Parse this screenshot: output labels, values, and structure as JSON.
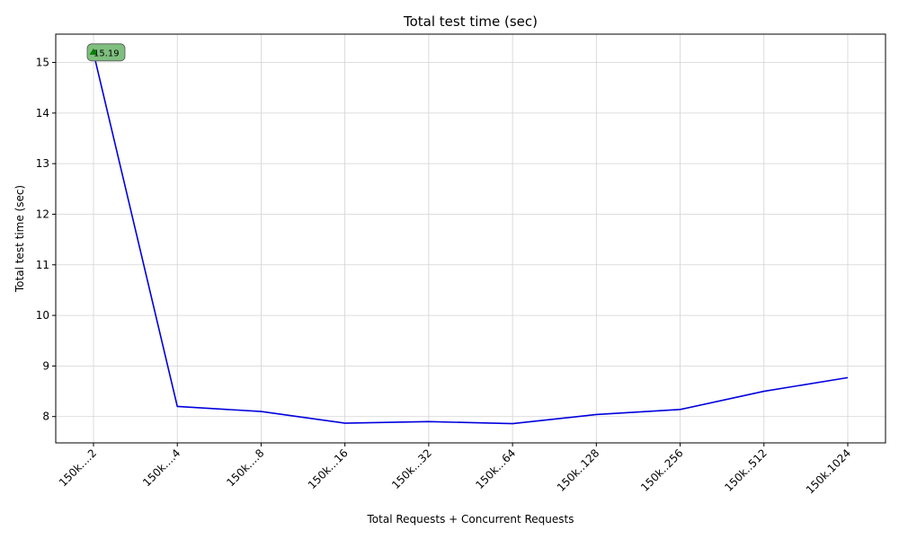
{
  "chart_data": {
    "type": "line",
    "title": "Total test time (sec)",
    "xlabel": "Total Requests + Concurrent Requests",
    "ylabel": "Total test time (sec)",
    "categories": [
      "150k....2",
      "150k....4",
      "150k....8",
      "150k...16",
      "150k...32",
      "150k...64",
      "150k..128",
      "150k..256",
      "150k..512",
      "150k.1024"
    ],
    "series": [
      {
        "values": [
          15.19,
          8.2,
          8.1,
          7.87,
          7.9,
          7.86,
          8.04,
          8.14,
          8.5,
          8.77
        ],
        "color": "#0000dd"
      }
    ],
    "ylim": [
      7.48,
      15.56
    ],
    "yticks": [
      8,
      9,
      10,
      11,
      12,
      13,
      14,
      15
    ],
    "grid": true,
    "annotation": {
      "category_index": 0,
      "value": 15.19,
      "text": "15.19",
      "box_color": "#7fbf7f",
      "marker_color": "#008000"
    }
  }
}
